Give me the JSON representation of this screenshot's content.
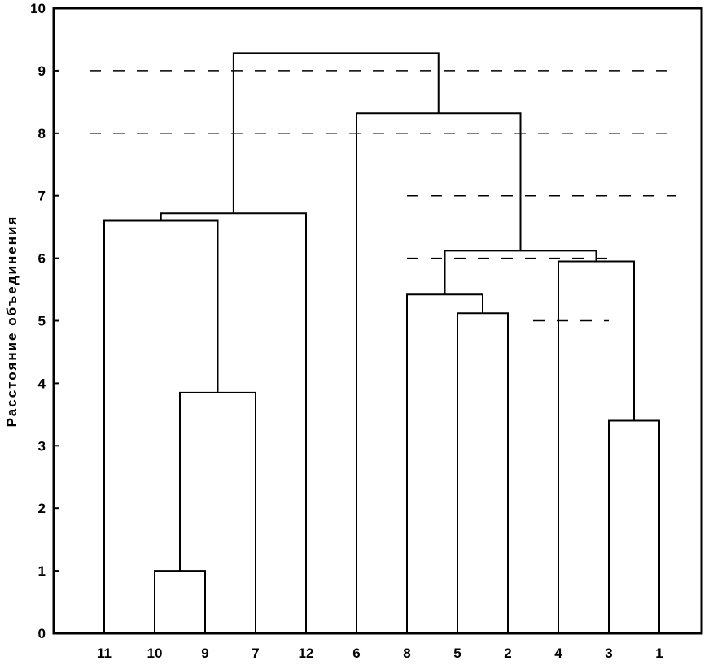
{
  "chart_data": {
    "type": "dendrogram",
    "ylabel": "Расстояние объединения",
    "ylim": [
      0,
      10
    ],
    "y_ticks": [
      "0",
      "1",
      "2",
      "3",
      "4",
      "5",
      "6",
      "7",
      "8",
      "9",
      "10"
    ],
    "leaf_order": [
      "11",
      "10",
      "9",
      "7",
      "12",
      "6",
      "8",
      "5",
      "2",
      "4",
      "3",
      "1"
    ],
    "merges": [
      {
        "left": 1,
        "right": 2,
        "height": 1.0
      },
      {
        "left": 1.5,
        "right": 3,
        "height": 3.85
      },
      {
        "left": 0,
        "right": 2.25,
        "height": 6.6
      },
      {
        "left": 1.125,
        "right": 4,
        "height": 6.72
      },
      {
        "left": 7,
        "right": 8,
        "height": 5.12
      },
      {
        "left": 6,
        "right": 7.5,
        "height": 5.42
      },
      {
        "left": 10,
        "right": 11,
        "height": 3.4
      },
      {
        "left": 9,
        "right": 10.5,
        "height": 5.95
      },
      {
        "left": 6.75,
        "right": 9.75,
        "height": 6.12
      },
      {
        "left": 5,
        "right": 8.25,
        "height": 8.32
      },
      {
        "left": 2.5625,
        "right": 6.625,
        "height": 9.28
      }
    ],
    "reference_lines": [
      {
        "y": 9,
        "x_from": 0,
        "x_to": 12
      },
      {
        "y": 8,
        "x_from": 0,
        "x_to": 12
      },
      {
        "y": 7,
        "x_from": 6,
        "x_to": 12
      },
      {
        "y": 6,
        "x_from": 6,
        "x_to": 10
      },
      {
        "y": 5,
        "x_from": 8.5,
        "x_to": 10
      }
    ],
    "grid": false
  }
}
